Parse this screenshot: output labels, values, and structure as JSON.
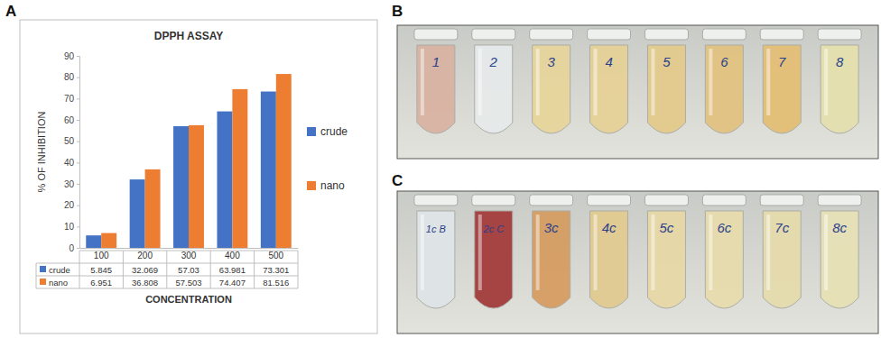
{
  "chart_data": {
    "type": "bar",
    "title": "DPPH ASSAY",
    "categories": [
      "100",
      "200",
      "300",
      "400",
      "500"
    ],
    "series": [
      {
        "name": "crude",
        "color": "#4472c4",
        "values": [
          5.845,
          32.069,
          57.03,
          63.981,
          73.301
        ]
      },
      {
        "name": "nano",
        "color": "#ed7d31",
        "values": [
          6.951,
          36.808,
          57.503,
          74.407,
          81.516
        ]
      }
    ],
    "xlabel": "CONCENTRATION",
    "ylabel": "% OF INHIBITION",
    "ylim": [
      0,
      90
    ],
    "yticks": [
      0,
      10,
      20,
      30,
      40,
      50,
      60,
      70,
      80,
      90
    ],
    "grid": false,
    "legend": "right"
  },
  "figure": {
    "panel_labels": [
      "A",
      "B",
      "C"
    ],
    "photos": [
      {
        "tubes": [
          {
            "label": "1",
            "color": "#d9b3a3"
          },
          {
            "label": "2",
            "color": "#e6eaea"
          },
          {
            "label": "3",
            "color": "#e8d59c"
          },
          {
            "label": "4",
            "color": "#e6d197"
          },
          {
            "label": "5",
            "color": "#e4cb8c"
          },
          {
            "label": "6",
            "color": "#e2c381"
          },
          {
            "label": "7",
            "color": "#e4bf76"
          },
          {
            "label": "8",
            "color": "#e5e0ae"
          }
        ]
      },
      {
        "tubes": [
          {
            "label": "1c B",
            "color": "#dfe5e7"
          },
          {
            "label": "2c C",
            "color": "#a43c3c"
          },
          {
            "label": "3c",
            "color": "#d69d63"
          },
          {
            "label": "4c",
            "color": "#e2cb91"
          },
          {
            "label": "5c",
            "color": "#e7d8a6"
          },
          {
            "label": "6c",
            "color": "#e7dcad"
          },
          {
            "label": "7c",
            "color": "#e5dbad"
          },
          {
            "label": "8c",
            "color": "#e7e1b6"
          }
        ]
      }
    ]
  }
}
